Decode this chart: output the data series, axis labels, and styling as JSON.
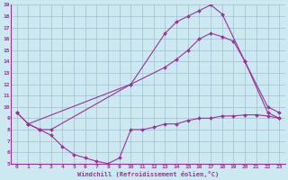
{
  "xlabel": "Windchill (Refroidissement éolien,°C)",
  "background_color": "#cce8f0",
  "line_color": "#993399",
  "grid_color": "#99bbcc",
  "xlim": [
    -0.5,
    23.5
  ],
  "ylim": [
    5,
    19
  ],
  "xticks": [
    0,
    1,
    2,
    3,
    4,
    5,
    6,
    7,
    8,
    9,
    10,
    11,
    12,
    13,
    14,
    15,
    16,
    17,
    18,
    19,
    20,
    21,
    22,
    23
  ],
  "yticks": [
    5,
    6,
    7,
    8,
    9,
    10,
    11,
    12,
    13,
    14,
    15,
    16,
    17,
    18,
    19
  ],
  "series": [
    {
      "x": [
        0,
        1,
        10,
        13,
        14,
        15,
        16,
        17,
        18,
        20,
        22,
        23
      ],
      "y": [
        9.5,
        8.5,
        12.0,
        16.5,
        17.5,
        18.0,
        18.5,
        19.0,
        18.2,
        14.0,
        10.0,
        9.5
      ]
    },
    {
      "x": [
        0,
        1,
        2,
        3,
        10,
        13,
        14,
        15,
        16,
        17,
        18,
        19,
        20,
        22,
        23
      ],
      "y": [
        9.5,
        8.5,
        8.0,
        8.0,
        12.0,
        13.5,
        14.2,
        15.0,
        16.0,
        16.5,
        16.2,
        15.8,
        14.0,
        9.5,
        9.0
      ]
    },
    {
      "x": [
        1,
        2,
        3,
        4,
        5,
        6,
        7,
        8,
        9,
        10,
        11,
        12,
        13,
        14,
        15,
        16,
        17,
        18,
        19,
        20,
        21,
        22,
        23
      ],
      "y": [
        8.5,
        8.0,
        7.5,
        6.5,
        5.8,
        5.5,
        5.2,
        5.0,
        5.5,
        8.0,
        8.0,
        8.2,
        8.5,
        8.5,
        8.8,
        9.0,
        9.0,
        9.2,
        9.2,
        9.3,
        9.3,
        9.2,
        9.0
      ]
    }
  ]
}
